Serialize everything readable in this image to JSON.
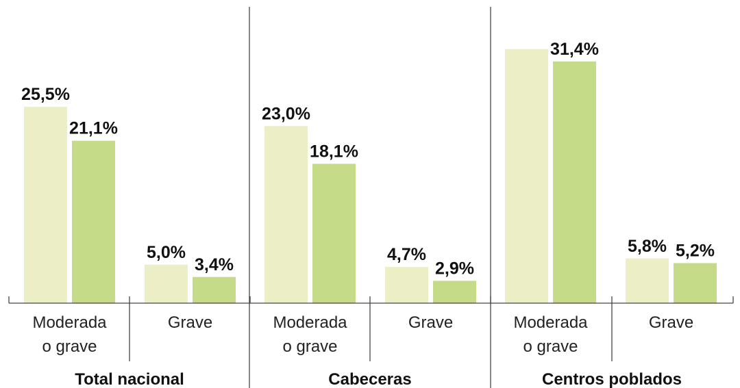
{
  "chart_data": {
    "type": "bar",
    "groups": [
      {
        "label": "Total nacional",
        "categories": [
          "Moderada\no grave",
          "Grave"
        ],
        "values": [
          [
            25.5,
            21.1
          ],
          [
            5.0,
            3.4
          ]
        ],
        "labels": [
          [
            "25,5%",
            "21,1%"
          ],
          [
            "5,0%",
            "3,4%"
          ]
        ]
      },
      {
        "label": "Cabeceras",
        "categories": [
          "Moderada\no grave",
          "Grave"
        ],
        "values": [
          [
            23.0,
            18.1
          ],
          [
            4.7,
            2.9
          ]
        ],
        "labels": [
          [
            "23,0%",
            "18,1%"
          ],
          [
            "4,7%",
            "2,9%"
          ]
        ]
      },
      {
        "label": "Centros poblados",
        "categories": [
          "Moderada\no grave",
          "Grave"
        ],
        "values": [
          [
            33.0,
            31.4
          ],
          [
            5.8,
            5.2
          ]
        ],
        "labels": [
          [
            "",
            "31,4%"
          ],
          [
            "5,8%",
            "5,2%"
          ]
        ]
      }
    ],
    "series_colors": [
      "#ecefc6",
      "#c6db87"
    ],
    "ylim": [
      0,
      30.4
    ]
  }
}
